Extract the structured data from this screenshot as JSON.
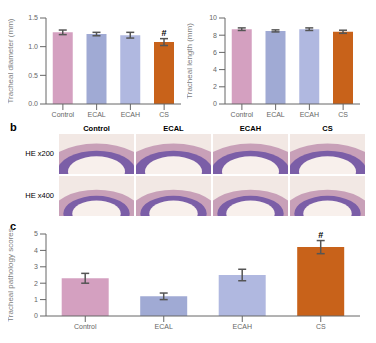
{
  "chart_data": [
    {
      "type": "bar",
      "ylabel": "Tracheal diameter (mm)",
      "categories": [
        "Control",
        "ECAL",
        "ECAH",
        "CS"
      ],
      "values": [
        1.25,
        1.22,
        1.2,
        1.08
      ],
      "errors": [
        0.04,
        0.03,
        0.05,
        0.06
      ],
      "colors": [
        "#d4a0c0",
        "#a0aad4",
        "#b0b8e0",
        "#c8621a"
      ],
      "ylim": [
        0,
        1.5
      ],
      "yticks": [
        {
          "value": 0,
          "label": "0.0"
        },
        0.5,
        {
          "value": 1,
          "label": "1.0"
        },
        1.5
      ],
      "annotations": [
        {
          "category": "CS",
          "text": "#"
        }
      ]
    },
    {
      "type": "bar",
      "ylabel": "Tracheal length (mm)",
      "categories": [
        "Control",
        "ECAL",
        "ECAH",
        "CS"
      ],
      "values": [
        8.7,
        8.5,
        8.7,
        8.4
      ],
      "errors": [
        0.15,
        0.12,
        0.15,
        0.18
      ],
      "colors": [
        "#d4a0c0",
        "#a0aad4",
        "#b0b8e0",
        "#c8621a"
      ],
      "ylim": [
        0,
        10
      ],
      "yticks": [
        0,
        2,
        4,
        6,
        8,
        10
      ]
    },
    {
      "type": "image",
      "title": "b",
      "categories": [
        "Control",
        "ECAL",
        "ECAH",
        "CS"
      ],
      "series": [
        {
          "name": "HE x200"
        },
        {
          "name": "HE x400"
        }
      ]
    },
    {
      "type": "bar",
      "title": "c",
      "ylabel": "Tracheal pathology scores",
      "categories": [
        "Control",
        "ECAL",
        "ECAH",
        "CS"
      ],
      "values": [
        2.3,
        1.2,
        2.5,
        4.2
      ],
      "errors": [
        0.3,
        0.2,
        0.35,
        0.4
      ],
      "colors": [
        "#d4a0c0",
        "#a0aad4",
        "#b0b8e0",
        "#c8621a"
      ],
      "ylim": [
        0,
        5
      ],
      "yticks": [
        0,
        1,
        2,
        3,
        4,
        5
      ],
      "annotations": [
        {
          "category": "CS",
          "text": "#"
        }
      ]
    }
  ]
}
